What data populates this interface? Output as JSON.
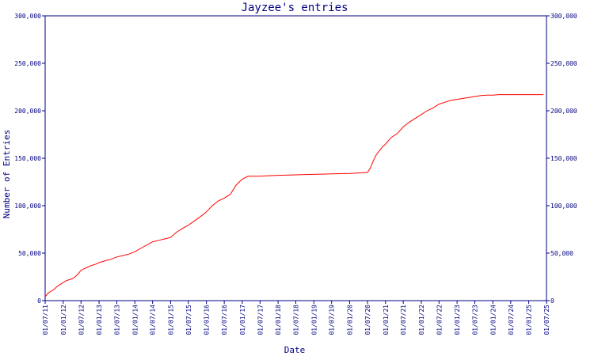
{
  "chart_data": {
    "type": "line",
    "title": "Jayzee's entries",
    "xlabel": "Date",
    "ylabel": "Number of Entries",
    "ylim": [
      0,
      300000
    ],
    "y_ticks": [
      0,
      50000,
      100000,
      150000,
      200000,
      250000,
      300000
    ],
    "y_tick_labels": [
      "0",
      "50,000",
      "100,000",
      "150,000",
      "200,000",
      "250,000",
      "300,000"
    ],
    "x_tick_labels": [
      "01/07/11",
      "01/01/12",
      "01/07/12",
      "01/01/13",
      "01/07/13",
      "01/01/14",
      "01/07/14",
      "01/01/15",
      "01/07/15",
      "01/01/16",
      "01/07/16",
      "01/01/17",
      "01/07/17",
      "01/01/18",
      "01/07/18",
      "01/01/19",
      "01/07/19",
      "01/01/20",
      "01/07/20",
      "01/01/21",
      "01/07/21",
      "01/01/22",
      "01/07/22",
      "01/01/23",
      "01/07/23",
      "01/01/24",
      "01/07/24",
      "01/01/25",
      "01/07/25"
    ],
    "series": [
      {
        "name": "",
        "color": "#ff0000",
        "x": [
          "2011-07-01",
          "2011-08-01",
          "2011-09-01",
          "2011-10-01",
          "2011-11-01",
          "2011-12-01",
          "2012-01-01",
          "2012-02-01",
          "2012-03-01",
          "2012-04-01",
          "2012-05-01",
          "2012-06-01",
          "2012-07-01",
          "2012-08-01",
          "2012-09-01",
          "2012-10-01",
          "2012-11-01",
          "2012-12-01",
          "2013-01-01",
          "2013-03-01",
          "2013-05-01",
          "2013-07-01",
          "2013-09-01",
          "2013-11-01",
          "2014-01-01",
          "2014-03-01",
          "2014-05-01",
          "2014-07-01",
          "2014-09-01",
          "2014-11-01",
          "2015-01-01",
          "2015-03-01",
          "2015-05-01",
          "2015-07-01",
          "2015-09-01",
          "2015-11-01",
          "2016-01-01",
          "2016-03-01",
          "2016-05-01",
          "2016-07-01",
          "2016-09-01",
          "2016-11-01",
          "2017-01-01",
          "2017-03-01",
          "2017-05-01",
          "2017-07-01",
          "2017-09-01",
          "2018-01-01",
          "2018-07-01",
          "2019-01-01",
          "2019-07-01",
          "2020-01-01",
          "2020-07-01",
          "2020-08-01",
          "2020-09-01",
          "2020-10-01",
          "2020-11-01",
          "2020-12-01",
          "2021-01-01",
          "2021-03-01",
          "2021-05-01",
          "2021-07-01",
          "2021-09-01",
          "2021-11-01",
          "2022-01-01",
          "2022-03-01",
          "2022-05-01",
          "2022-07-01",
          "2022-09-01",
          "2022-11-01",
          "2023-01-01",
          "2023-03-01",
          "2023-05-01",
          "2023-07-01",
          "2023-09-01",
          "2023-11-01",
          "2024-01-01",
          "2024-03-01",
          "2024-05-01",
          "2024-07-01",
          "2024-09-01",
          "2024-11-01",
          "2025-01-01",
          "2025-03-01",
          "2025-05-01",
          "2025-06-01"
        ],
        "y": [
          4000,
          8000,
          10000,
          12000,
          15000,
          17000,
          19000,
          21000,
          22000,
          23000,
          25000,
          28000,
          32000,
          33500,
          35000,
          36500,
          37500,
          38500,
          40000,
          42000,
          43500,
          46000,
          47500,
          49000,
          51500,
          55000,
          58500,
          62000,
          63500,
          65000,
          66500,
          72000,
          76000,
          79500,
          84000,
          88500,
          93500,
          100000,
          105000,
          108000,
          112000,
          122000,
          128000,
          131000,
          131000,
          131000,
          131500,
          132000,
          132500,
          133000,
          133500,
          134000,
          135000,
          140000,
          148000,
          154000,
          158000,
          162000,
          165000,
          172000,
          176000,
          183000,
          188000,
          192000,
          196000,
          200000,
          203000,
          207000,
          209000,
          211000,
          212000,
          213000,
          214000,
          215000,
          216000,
          216500,
          216500,
          217000,
          217000,
          217000,
          217000,
          217000,
          217000,
          217000,
          217000,
          217000
        ]
      }
    ]
  }
}
